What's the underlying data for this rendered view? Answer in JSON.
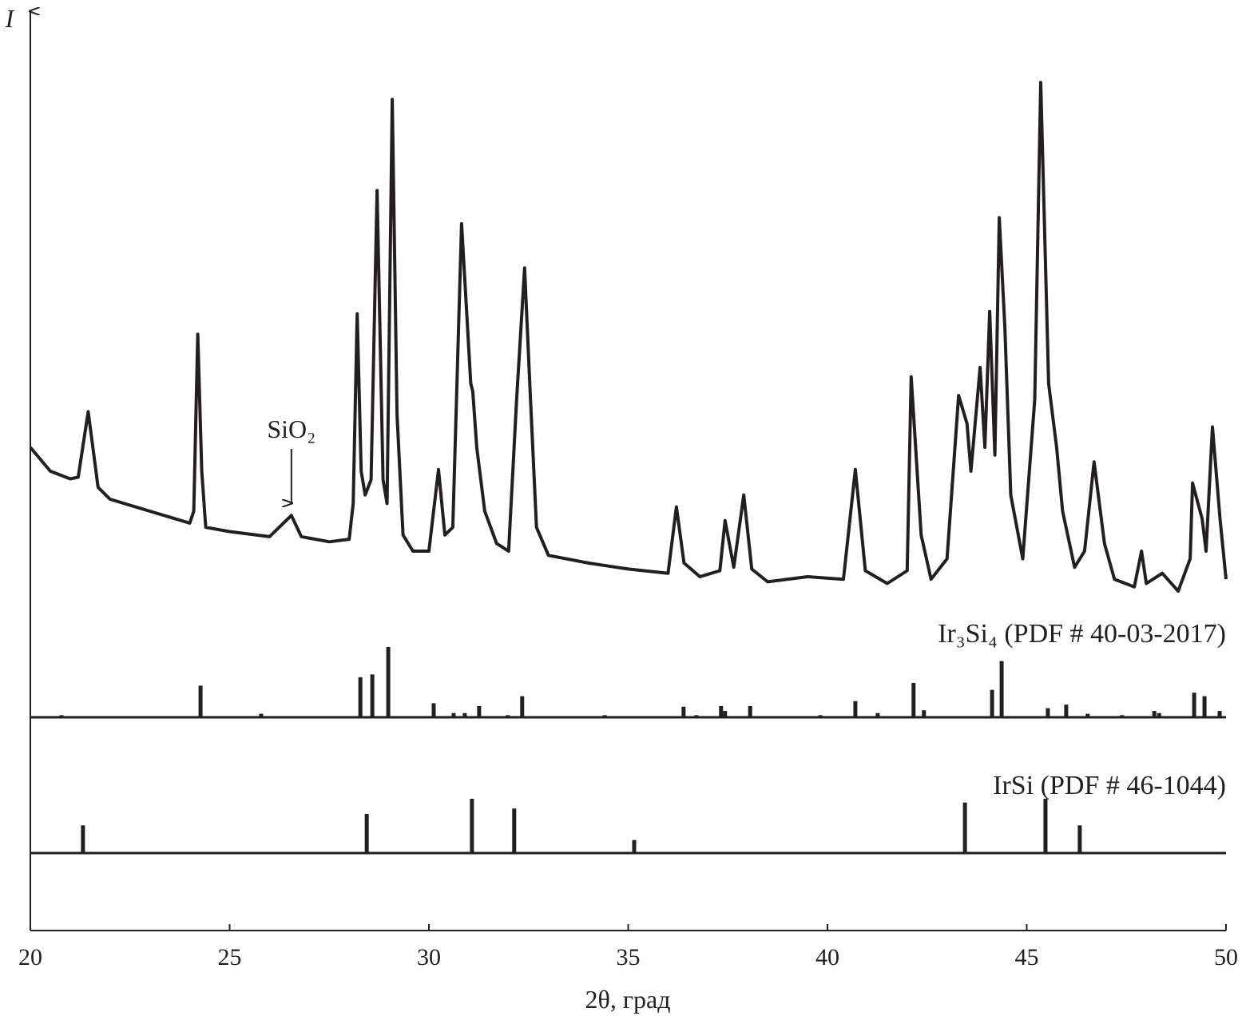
{
  "chart_data": [
    {
      "type": "line",
      "ylabel": "I",
      "xlabel": "2θ, град",
      "xlim": [
        20,
        50
      ],
      "xticks": [
        20,
        25,
        30,
        35,
        40,
        45,
        50
      ],
      "ylim": [
        0,
        100
      ],
      "annotation": {
        "text": "SiO₂",
        "x": 26.55
      },
      "series": [
        {
          "color": "#231f20",
          "x": [
            20.0,
            20.5,
            21.0,
            21.2,
            21.45,
            21.7,
            22.0,
            23.0,
            24.0,
            24.1,
            24.2,
            24.3,
            24.4,
            25.0,
            26.0,
            26.55,
            26.8,
            27.5,
            28.0,
            28.1,
            28.2,
            28.3,
            28.4,
            28.55,
            28.7,
            28.85,
            28.95,
            29.08,
            29.2,
            29.35,
            29.6,
            30.0,
            30.24,
            30.4,
            30.6,
            30.82,
            31.05,
            31.1,
            31.2,
            31.4,
            31.7,
            32.0,
            32.2,
            32.4,
            32.55,
            32.7,
            33.0,
            34.0,
            35.0,
            36.0,
            36.21,
            36.4,
            36.8,
            37.3,
            37.43,
            37.65,
            37.9,
            38.1,
            38.5,
            39.5,
            40.4,
            40.7,
            40.95,
            41.5,
            42.0,
            42.1,
            42.35,
            42.6,
            43.0,
            43.29,
            43.5,
            43.6,
            43.83,
            43.95,
            44.07,
            44.2,
            44.31,
            44.45,
            44.6,
            44.9,
            45.2,
            45.35,
            45.55,
            45.75,
            45.9,
            46.2,
            46.45,
            46.69,
            46.95,
            47.2,
            47.7,
            47.88,
            48.0,
            48.4,
            48.8,
            49.1,
            49.16,
            49.4,
            49.5,
            49.66,
            49.85,
            50.0
          ],
          "values": [
            56.8,
            54.0,
            53.1,
            53.3,
            61.0,
            52.1,
            50.7,
            49.3,
            47.9,
            49.3,
            70.1,
            54.0,
            47.4,
            46.9,
            46.3,
            48.8,
            46.3,
            45.7,
            46.0,
            50.2,
            72.5,
            54.0,
            51.2,
            53.0,
            87.0,
            53.0,
            50.2,
            97.7,
            60.6,
            46.5,
            44.6,
            44.6,
            54.2,
            46.5,
            47.4,
            83.1,
            64.3,
            63.4,
            56.8,
            49.3,
            45.5,
            44.6,
            62.4,
            77.9,
            62.4,
            47.4,
            44.1,
            43.2,
            42.5,
            42.0,
            49.8,
            43.2,
            41.6,
            42.3,
            48.2,
            42.7,
            51.2,
            42.5,
            41.0,
            41.6,
            41.3,
            54.2,
            42.3,
            40.8,
            42.3,
            65.1,
            46.5,
            41.3,
            43.7,
            62.9,
            59.6,
            54.0,
            66.2,
            56.8,
            72.8,
            55.9,
            83.8,
            70.9,
            51.2,
            43.7,
            62.4,
            99.7,
            64.3,
            56.8,
            49.3,
            42.7,
            44.6,
            55.1,
            45.5,
            41.3,
            40.4,
            44.6,
            40.8,
            42.0,
            39.9,
            43.7,
            52.6,
            48.4,
            44.6,
            59.2,
            48.4,
            41.3
          ]
        }
      ]
    },
    {
      "type": "stick",
      "title": "Ir₃Si₄ (PDF # 40-03-2017)",
      "xlim": [
        20,
        50
      ],
      "ylim": [
        0,
        100
      ],
      "color": "#231f20",
      "x": [
        20.78,
        24.27,
        25.79,
        28.28,
        28.58,
        28.98,
        30.12,
        30.62,
        30.9,
        31.26,
        31.98,
        32.34,
        34.41,
        36.39,
        36.71,
        37.33,
        37.43,
        38.06,
        39.82,
        40.7,
        41.26,
        42.16,
        42.42,
        44.13,
        44.37,
        45.53,
        45.99,
        46.53,
        47.39,
        48.2,
        48.32,
        49.2,
        49.46,
        49.84
      ],
      "values": [
        3,
        45,
        5,
        57,
        61,
        100,
        20,
        6,
        6,
        16,
        3,
        30,
        3,
        15,
        3,
        16,
        9,
        16,
        3,
        23,
        6,
        49,
        10,
        39,
        80,
        13,
        18,
        5,
        3,
        9,
        6,
        35,
        30,
        9
      ]
    },
    {
      "type": "stick",
      "title": "IrSi (PDF # 46-1044)",
      "xlim": [
        20,
        50
      ],
      "ylim": [
        0,
        100
      ],
      "color": "#231f20",
      "x": [
        21.32,
        28.44,
        31.08,
        32.14,
        35.15,
        43.45,
        45.47,
        46.33
      ],
      "values": [
        51,
        72,
        100,
        82,
        24,
        93,
        100,
        51
      ]
    }
  ]
}
